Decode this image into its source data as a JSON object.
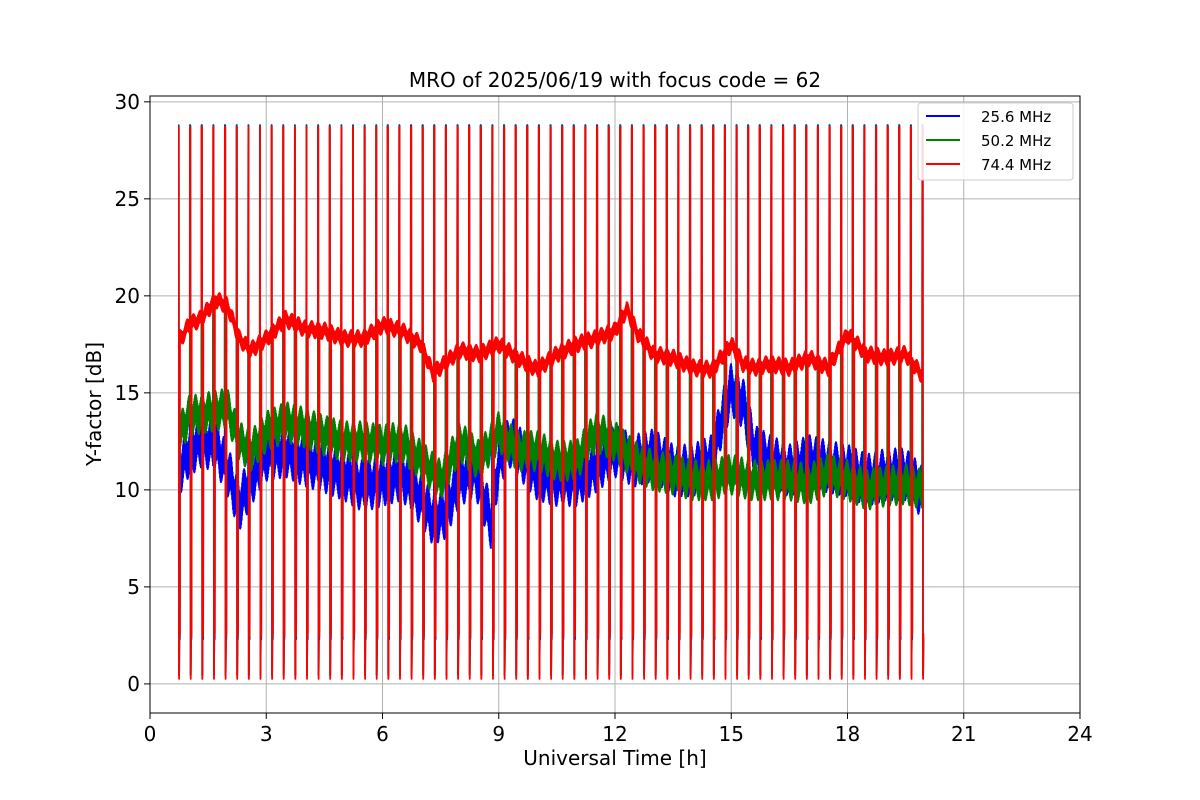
{
  "chart_data": {
    "type": "line",
    "title": "MRO of 2025/06/19 with focus code = 62",
    "xlabel": "Universal Time [h]",
    "ylabel": "Y-factor [dB]",
    "xlim": [
      0,
      24
    ],
    "ylim": [
      -1.5,
      30.3
    ],
    "xticks": [
      0,
      3,
      6,
      9,
      12,
      15,
      18,
      21,
      24
    ],
    "yticks": [
      0,
      5,
      10,
      15,
      20,
      25,
      30
    ],
    "grid": true,
    "legend_position": "top-right",
    "calibration": {
      "start_h": 0.73,
      "end_h": 19.97,
      "period_h": 0.3,
      "pulse_width_h": 0.045,
      "peak_db": 28.8,
      "floor_db": 0.2
    },
    "series": [
      {
        "name": "25.6 MHz",
        "color": "#0000ff",
        "spread_db": 1.8,
        "x": [
          0.8,
          1.0,
          1.3,
          1.7,
          2.0,
          2.3,
          2.6,
          3.0,
          3.5,
          4.0,
          4.5,
          5.0,
          5.5,
          6.0,
          6.5,
          7.0,
          7.3,
          7.6,
          8.0,
          8.4,
          8.8,
          9.0,
          9.3,
          9.7,
          10.0,
          10.5,
          11.0,
          11.5,
          12.0,
          12.5,
          13.0,
          13.5,
          14.0,
          14.5,
          14.8,
          15.0,
          15.3,
          15.6,
          16.0,
          16.5,
          17.0,
          17.5,
          18.0,
          18.5,
          19.0,
          19.5,
          19.97
        ],
        "values": [
          11.2,
          12.0,
          12.5,
          12.3,
          11.0,
          9.2,
          10.5,
          11.8,
          12.0,
          11.5,
          11.2,
          10.8,
          10.2,
          10.5,
          10.8,
          9.5,
          8.5,
          8.8,
          10.5,
          11.0,
          8.3,
          11.5,
          12.5,
          11.5,
          10.8,
          10.5,
          10.5,
          11.2,
          12.0,
          11.5,
          11.8,
          11.0,
          11.0,
          11.5,
          14.0,
          15.2,
          14.5,
          12.0,
          11.5,
          11.0,
          11.5,
          11.2,
          11.0,
          10.5,
          10.8,
          10.8,
          9.8
        ]
      },
      {
        "name": "50.2 MHz",
        "color": "#008000",
        "spread_db": 1.4,
        "x": [
          0.8,
          1.0,
          1.5,
          2.0,
          2.3,
          2.6,
          3.0,
          3.5,
          4.0,
          4.5,
          5.0,
          5.5,
          6.0,
          6.5,
          7.0,
          7.5,
          8.0,
          8.5,
          9.0,
          9.5,
          10.0,
          10.5,
          11.0,
          11.5,
          12.0,
          12.5,
          13.0,
          13.5,
          14.0,
          14.5,
          15.0,
          15.5,
          16.0,
          16.5,
          17.0,
          17.5,
          18.0,
          18.5,
          19.0,
          19.5,
          19.97
        ],
        "values": [
          13.0,
          13.8,
          14.0,
          14.2,
          12.5,
          12.0,
          13.0,
          13.5,
          13.2,
          12.8,
          12.5,
          12.5,
          12.3,
          12.5,
          11.5,
          10.5,
          12.5,
          11.5,
          13.0,
          12.0,
          12.0,
          11.5,
          11.5,
          13.0,
          12.5,
          11.5,
          11.0,
          10.8,
          10.5,
          10.5,
          10.8,
          10.5,
          10.5,
          10.5,
          10.3,
          10.8,
          10.5,
          10.0,
          10.2,
          10.3,
          10.0
        ]
      },
      {
        "name": "74.4 MHz",
        "color": "#ff0000",
        "spread_db": 0.6,
        "x": [
          0.8,
          1.0,
          1.3,
          1.7,
          2.0,
          2.3,
          2.6,
          3.0,
          3.5,
          4.0,
          4.5,
          5.0,
          5.5,
          6.0,
          6.5,
          7.0,
          7.3,
          7.6,
          8.0,
          8.5,
          9.0,
          9.5,
          10.0,
          10.5,
          11.0,
          11.5,
          12.0,
          12.3,
          12.6,
          13.0,
          13.5,
          14.0,
          14.5,
          15.0,
          15.3,
          15.6,
          16.0,
          16.5,
          17.0,
          17.5,
          18.0,
          18.5,
          19.0,
          19.5,
          19.97
        ],
        "values": [
          17.8,
          18.5,
          18.8,
          19.8,
          19.5,
          17.8,
          17.2,
          17.8,
          18.8,
          18.3,
          18.2,
          17.8,
          17.8,
          18.5,
          18.2,
          17.5,
          16.0,
          16.5,
          17.2,
          17.0,
          17.5,
          16.8,
          16.2,
          17.0,
          17.5,
          17.8,
          18.2,
          19.3,
          18.0,
          17.0,
          16.8,
          16.3,
          16.2,
          17.5,
          16.5,
          16.3,
          16.5,
          16.3,
          16.8,
          16.3,
          18.0,
          17.0,
          16.8,
          17.0,
          15.8
        ]
      }
    ]
  }
}
